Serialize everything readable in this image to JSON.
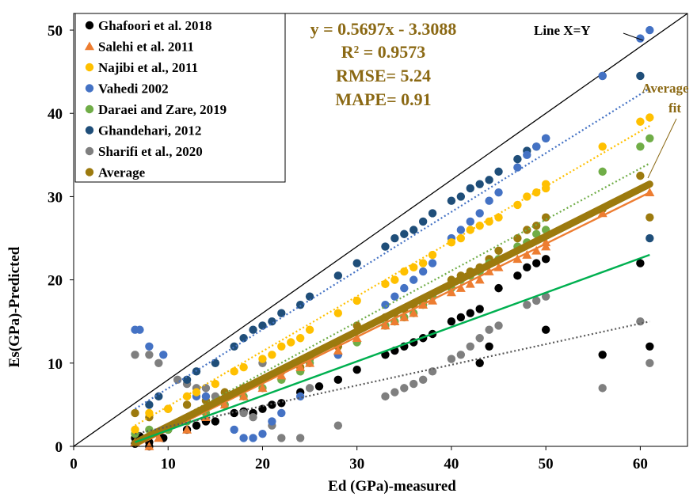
{
  "chart_data": {
    "type": "scatter",
    "xlabel": "Ed (GPa)-measured",
    "ylabel": "Es(GPa)-Predicted",
    "xlim": [
      0,
      65
    ],
    "ylim": [
      0,
      52
    ],
    "xticks": [
      0,
      10,
      20,
      30,
      40,
      50,
      60
    ],
    "yticks": [
      0,
      10,
      20,
      30,
      40,
      50
    ],
    "grid": false,
    "legend_position": "top-left",
    "equation": {
      "line1": "y = 0.5697x - 3.3088",
      "line2": "R² = 0.9573",
      "line3": "RMSE= 5.24",
      "line4": "MAPE= 0.91",
      "color": "#8B6914"
    },
    "identity_line_label": "Line X=Y",
    "average_fit_label_1": "Average",
    "average_fit_label_2": "fit",
    "series": [
      {
        "name": "Ghafoori et al. 2018",
        "marker": "circle",
        "color": "#000000",
        "trend": "dotted",
        "x": [
          6.5,
          7,
          8,
          9,
          10,
          12,
          13,
          14,
          15,
          17,
          18,
          19,
          20,
          21,
          22,
          24,
          26,
          28,
          30,
          33,
          34,
          35,
          36,
          37,
          38,
          40,
          41,
          42,
          43,
          45,
          47,
          48,
          49,
          50,
          50,
          56,
          61
        ],
        "y": [
          1,
          1.2,
          0.5,
          1.5,
          2,
          2,
          2.5,
          3,
          3,
          4,
          4.2,
          4,
          4.5,
          5,
          5.2,
          6.5,
          7.2,
          8,
          9.2,
          11,
          11.5,
          12,
          12.5,
          13,
          13.5,
          15,
          15.5,
          16,
          16.5,
          19,
          20.5,
          21.5,
          22,
          22.5,
          14,
          11,
          12
        ],
        "extra_x": [
          6.5,
          8,
          9.5,
          43,
          44,
          60
        ],
        "extra_y": [
          0.3,
          0,
          1,
          10,
          12,
          22
        ]
      },
      {
        "name": "Salehi et al. 2011",
        "marker": "triangle",
        "color": "#ED7D31",
        "trend": "solid",
        "x": [
          6.5,
          8,
          9,
          12,
          14,
          16,
          18,
          20,
          22,
          24,
          25,
          28,
          30,
          33,
          34,
          35,
          36,
          37,
          38,
          40,
          41,
          42,
          43,
          44,
          45,
          47,
          48,
          49,
          50,
          50,
          56,
          61
        ],
        "y": [
          0.5,
          0,
          1,
          2,
          3.5,
          5,
          6,
          7,
          8.5,
          9.5,
          10,
          11.5,
          13,
          14.5,
          15,
          15.5,
          16,
          17,
          17.5,
          18.5,
          19,
          19.5,
          20,
          21,
          21.5,
          22.5,
          23,
          23.5,
          24,
          24.5,
          28,
          30.5
        ]
      },
      {
        "name": "Najibi et al., 2011",
        "marker": "circle",
        "color": "#FFC000",
        "trend": "dotted",
        "x": [
          6.5,
          8,
          10,
          12,
          13,
          15,
          17,
          18,
          20,
          21,
          22,
          23,
          24,
          25,
          28,
          30,
          33,
          34,
          35,
          36,
          37,
          38,
          40,
          41,
          42,
          43,
          44,
          45,
          47,
          48,
          49,
          50,
          50,
          56,
          60,
          61
        ],
        "y": [
          2,
          4,
          4.5,
          6,
          6.5,
          7.5,
          9,
          9.5,
          10.5,
          11,
          12,
          12.5,
          13,
          14,
          16,
          17.5,
          19.5,
          20,
          21,
          21.5,
          22,
          23,
          24.5,
          25,
          26,
          26.5,
          27,
          27.5,
          29,
          30,
          30.5,
          31,
          31.5,
          36,
          39,
          39.5
        ]
      },
      {
        "name": "Vahedi 2002",
        "marker": "circle",
        "color": "#4472C4",
        "trend": "dotted",
        "x": [
          6.5,
          7,
          8,
          9.5,
          13,
          14,
          17,
          18,
          19,
          20,
          21,
          22,
          24,
          28,
          33,
          34,
          35,
          36,
          37,
          38,
          40,
          41,
          42,
          43,
          44,
          45,
          47,
          48,
          49,
          50,
          56,
          60,
          61
        ],
        "y": [
          14,
          14,
          12,
          11,
          6,
          6,
          2,
          1,
          1,
          1.5,
          3,
          4,
          6,
          11,
          17,
          18,
          19,
          20,
          21,
          22,
          25,
          26,
          27,
          28,
          29.5,
          30.5,
          33.5,
          35,
          36,
          37,
          44.5,
          49,
          50
        ]
      },
      {
        "name": "Daraei and Zare, 2019",
        "marker": "circle",
        "color": "#70AD47",
        "trend": "dotted",
        "x": [
          6.5,
          8,
          10,
          12,
          14,
          16,
          18,
          20,
          22,
          24,
          25,
          28,
          30,
          33,
          34,
          35,
          36,
          37,
          38,
          40,
          41,
          42,
          43,
          44,
          45,
          47,
          48,
          49,
          50,
          56,
          60,
          61
        ],
        "y": [
          1.5,
          2,
          2,
          3,
          4,
          5,
          6,
          7,
          8,
          9,
          10,
          11,
          12.5,
          14.5,
          15,
          15.5,
          16,
          17,
          18,
          19,
          20,
          20.5,
          21,
          22,
          22.5,
          24,
          24.5,
          25.5,
          26,
          33,
          36,
          37
        ]
      },
      {
        "name": "Ghandehari, 2012",
        "marker": "circle",
        "color": "#1F4E79",
        "trend": "solid",
        "x": [
          8,
          9,
          12,
          13,
          15,
          17,
          18,
          19,
          20,
          21,
          22,
          24,
          25,
          28,
          30,
          33,
          34,
          35,
          36,
          37,
          38,
          40,
          41,
          42,
          43,
          44,
          45,
          47,
          48,
          49,
          50,
          56,
          60,
          61
        ],
        "y": [
          5,
          6,
          8,
          9,
          10,
          12,
          13,
          14,
          14.5,
          15,
          16,
          17,
          18,
          20.5,
          22,
          24,
          25,
          25.5,
          26,
          27,
          28,
          29.5,
          30,
          31,
          31.5,
          32,
          33,
          34.5,
          35.5,
          36,
          37,
          44.5,
          44.5,
          25
        ]
      },
      {
        "name": "Sharifi et al., 2020",
        "marker": "circle",
        "color": "#7F7F7F",
        "trend": "dotted",
        "x": [
          6.5,
          8,
          9,
          11,
          12,
          13,
          14,
          15,
          18,
          19,
          20,
          21,
          22,
          24,
          25,
          28,
          33,
          34,
          35,
          36,
          37,
          38,
          40,
          41,
          42,
          43,
          44,
          45,
          48,
          49,
          50,
          56,
          60,
          61
        ],
        "y": [
          11,
          11,
          10,
          8,
          7.5,
          7,
          7,
          6,
          4,
          3.5,
          10,
          2.5,
          1,
          1,
          7,
          2.5,
          6,
          6.5,
          7,
          7.5,
          8,
          9,
          10.5,
          11,
          12,
          13,
          14,
          14.5,
          17,
          17.5,
          18,
          7,
          15,
          10
        ]
      },
      {
        "name": "Average",
        "marker": "circle",
        "color": "#9C7A0E",
        "trend": "thick",
        "x": [
          6.5,
          8,
          10,
          12,
          14,
          16,
          18,
          20,
          22,
          24,
          25,
          28,
          30,
          33,
          34,
          35,
          36,
          37,
          38,
          40,
          41,
          42,
          43,
          44,
          45,
          47,
          48,
          49,
          50,
          56,
          60,
          61
        ],
        "y": [
          4,
          3.5,
          4.5,
          5,
          5.5,
          6.5,
          7,
          8,
          9,
          9.5,
          10.5,
          12,
          14.5,
          15.5,
          16,
          16.5,
          17,
          17.5,
          18,
          20,
          20.5,
          21,
          21.5,
          22.5,
          23.5,
          25,
          26,
          26.5,
          27.5,
          28.5,
          32.5,
          27.5
        ]
      }
    ],
    "trendlines": [
      {
        "name": "Ghandehari, 2012",
        "color": "#4472C4",
        "style": "dotted",
        "x": [
          6.5,
          61
        ],
        "y": [
          4.5,
          43
        ]
      },
      {
        "name": "Najibi et al., 2011",
        "color": "#FFC000",
        "style": "dotted",
        "x": [
          6.5,
          61
        ],
        "y": [
          2.5,
          38.5
        ]
      },
      {
        "name": "Daraei and Zare, 2019",
        "color": "#70AD47",
        "style": "dotted",
        "x": [
          6.5,
          61
        ],
        "y": [
          0.5,
          34
        ]
      },
      {
        "name": "Salehi et al. 2011",
        "color": "#ED7D31",
        "style": "solid",
        "x": [
          6.5,
          61
        ],
        "y": [
          0,
          30.5
        ]
      },
      {
        "name": "Average",
        "color": "#9C7A0E",
        "style": "thick",
        "x": [
          6.5,
          61
        ],
        "y": [
          0.4,
          31.5
        ]
      },
      {
        "name": "Ghafoori et al. 2018",
        "color": "#00B050",
        "style": "solid",
        "x": [
          6.5,
          61
        ],
        "y": [
          0.5,
          23
        ]
      },
      {
        "name": "Sharifi et al., 2020",
        "color": "#595959",
        "style": "dotted",
        "x": [
          6.5,
          61
        ],
        "y": [
          1.5,
          15
        ]
      }
    ]
  }
}
